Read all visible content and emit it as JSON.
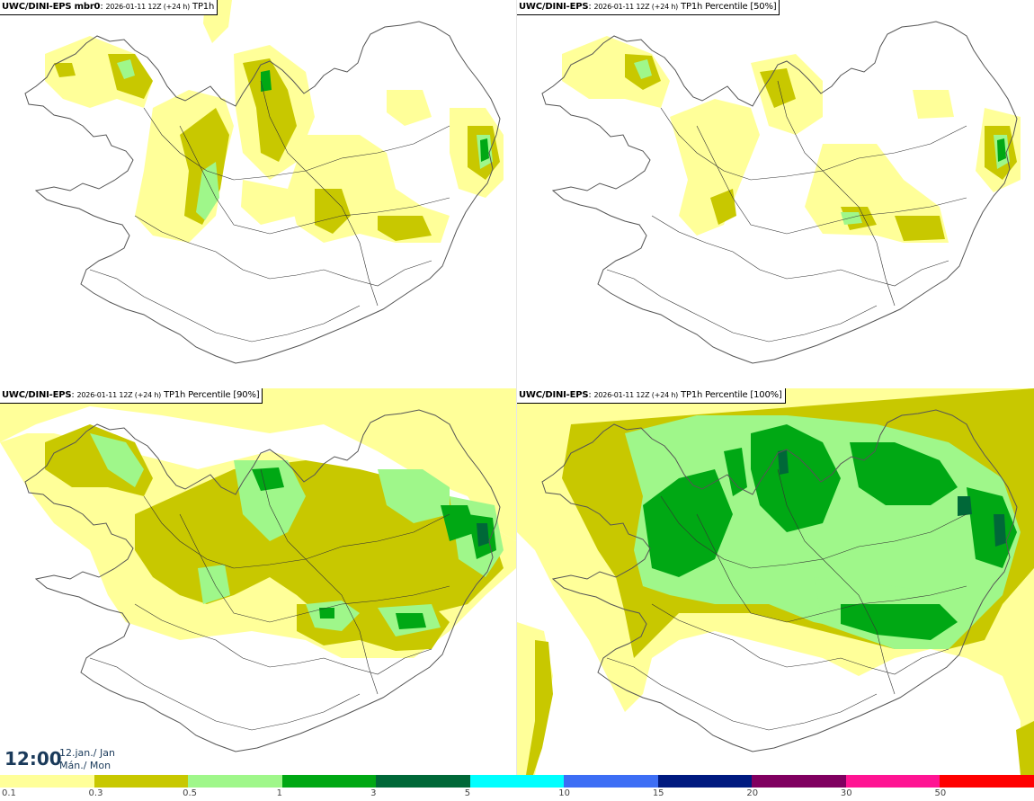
{
  "panels": [
    {
      "model": "UWC/DINI-EPS mbr0",
      "run": "2026-01-11 12Z (+24 h)",
      "field": "TP1h"
    },
    {
      "model": "UWC/DINI-EPS",
      "run": "2026-01-11 12Z (+24 h)",
      "field": "TP1h Percentile [50%]"
    },
    {
      "model": "UWC/DINI-EPS",
      "run": "2026-01-11 12Z (+24 h)",
      "field": "TP1h Percentile [90%]"
    },
    {
      "model": "UWC/DINI-EPS",
      "run": "2026-01-11 12Z (+24 h)",
      "field": "TP1h Percentile [100%]"
    }
  ],
  "valid_time": {
    "time": "12:00",
    "date_line1": "12.jan./ Jan",
    "date_line2": "Mán./ Mon"
  },
  "legend": {
    "labels": [
      "0.1",
      "0.3",
      "0.5",
      "1",
      "3",
      "5",
      "10",
      "15",
      "20",
      "30",
      "50"
    ],
    "colors": [
      "#ffff99",
      "#c8c800",
      "#9ff78a",
      "#00a814",
      "#006838",
      "#00ffff",
      "#3d6ef5",
      "#001a80",
      "#800060",
      "#ff1493",
      "#ff0000"
    ]
  },
  "palette": {
    "coast": "#555555",
    "roads": "#333333"
  }
}
